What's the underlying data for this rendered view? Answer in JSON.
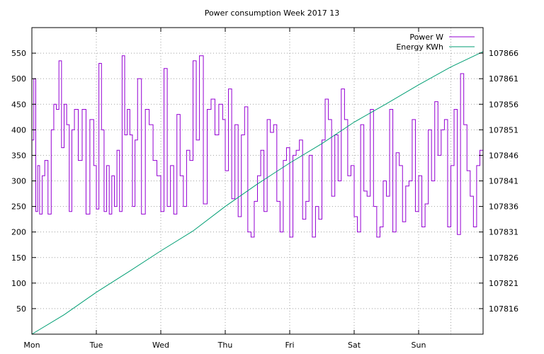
{
  "chart_data": {
    "type": "line",
    "title": "Power consumption Week 2017 13",
    "x_categories": [
      "Mon",
      "Tue",
      "Wed",
      "Thu",
      "Fri",
      "Sat",
      "Sun"
    ],
    "y_left": {
      "ticks": [
        50,
        100,
        150,
        200,
        250,
        300,
        350,
        400,
        450,
        500,
        550
      ],
      "range": [
        0,
        600
      ]
    },
    "y_right": {
      "ticks": [
        107816,
        107821,
        107826,
        107831,
        107836,
        107841,
        107846,
        107851,
        107856,
        107861,
        107866
      ],
      "range": [
        107811,
        107871
      ]
    },
    "x_range": [
      0,
      7
    ],
    "grid": true,
    "legend_position": "top-right",
    "series": [
      {
        "name": "Power W",
        "axis": "left",
        "color": "#9400d3",
        "x": [
          0.0,
          0.03,
          0.06,
          0.09,
          0.12,
          0.16,
          0.2,
          0.25,
          0.3,
          0.34,
          0.38,
          0.42,
          0.46,
          0.5,
          0.54,
          0.58,
          0.62,
          0.66,
          0.72,
          0.78,
          0.84,
          0.9,
          0.96,
          1.0,
          1.04,
          1.08,
          1.12,
          1.16,
          1.2,
          1.24,
          1.28,
          1.32,
          1.36,
          1.4,
          1.44,
          1.48,
          1.52,
          1.56,
          1.6,
          1.64,
          1.7,
          1.76,
          1.82,
          1.88,
          1.94,
          2.0,
          2.05,
          2.1,
          2.15,
          2.2,
          2.25,
          2.3,
          2.35,
          2.4,
          2.45,
          2.5,
          2.55,
          2.6,
          2.66,
          2.72,
          2.78,
          2.84,
          2.9,
          2.96,
          3.0,
          3.05,
          3.1,
          3.15,
          3.2,
          3.25,
          3.3,
          3.35,
          3.4,
          3.45,
          3.5,
          3.55,
          3.6,
          3.65,
          3.7,
          3.75,
          3.8,
          3.85,
          3.9,
          3.95,
          4.0,
          4.05,
          4.1,
          4.15,
          4.2,
          4.25,
          4.3,
          4.35,
          4.4,
          4.45,
          4.5,
          4.55,
          4.6,
          4.65,
          4.7,
          4.75,
          4.8,
          4.85,
          4.9,
          4.95,
          5.0,
          5.05,
          5.1,
          5.15,
          5.2,
          5.25,
          5.3,
          5.35,
          5.4,
          5.45,
          5.5,
          5.55,
          5.6,
          5.65,
          5.7,
          5.75,
          5.8,
          5.85,
          5.9,
          5.95,
          6.0,
          6.05,
          6.1,
          6.15,
          6.2,
          6.25,
          6.3,
          6.35,
          6.4,
          6.45,
          6.5,
          6.55,
          6.6,
          6.65,
          6.7,
          6.75,
          6.8,
          6.85,
          6.9,
          6.95,
          7.0
        ],
        "y": [
          380,
          500,
          240,
          330,
          235,
          310,
          340,
          235,
          400,
          450,
          440,
          535,
          365,
          450,
          410,
          240,
          400,
          440,
          340,
          440,
          235,
          420,
          330,
          245,
          530,
          400,
          240,
          330,
          235,
          310,
          250,
          360,
          240,
          545,
          390,
          440,
          390,
          250,
          380,
          500,
          235,
          440,
          410,
          340,
          310,
          240,
          520,
          250,
          330,
          235,
          430,
          310,
          250,
          360,
          340,
          535,
          380,
          545,
          255,
          440,
          460,
          390,
          450,
          420,
          320,
          480,
          265,
          410,
          230,
          390,
          445,
          200,
          190,
          260,
          310,
          360,
          240,
          420,
          395,
          410,
          260,
          200,
          340,
          365,
          190,
          350,
          360,
          380,
          225,
          260,
          350,
          190,
          250,
          225,
          380,
          460,
          420,
          270,
          390,
          300,
          480,
          420,
          310,
          330,
          230,
          200,
          410,
          280,
          270,
          440,
          250,
          190,
          210,
          300,
          270,
          440,
          200,
          355,
          330,
          220,
          290,
          300,
          420,
          240,
          310,
          210,
          255,
          400,
          300,
          455,
          350,
          400,
          420,
          210,
          330,
          440,
          195,
          510,
          410,
          320,
          270,
          210,
          330,
          360,
          355
        ],
        "y_note": "step series; values range approx 190-545 W"
      },
      {
        "name": "Energy KWh",
        "axis": "right",
        "color": "#009e73",
        "x": [
          0.0,
          0.5,
          1.0,
          1.5,
          2.0,
          2.5,
          3.0,
          3.5,
          4.0,
          4.5,
          5.0,
          5.5,
          6.0,
          6.5,
          7.0
        ],
        "y": [
          107811.0,
          107814.8,
          107819.2,
          107823.2,
          107827.3,
          107831.2,
          107836.0,
          107840.4,
          107844.5,
          107848.3,
          107852.5,
          107856.1,
          107859.8,
          107863.3,
          107866.3
        ]
      }
    ]
  }
}
